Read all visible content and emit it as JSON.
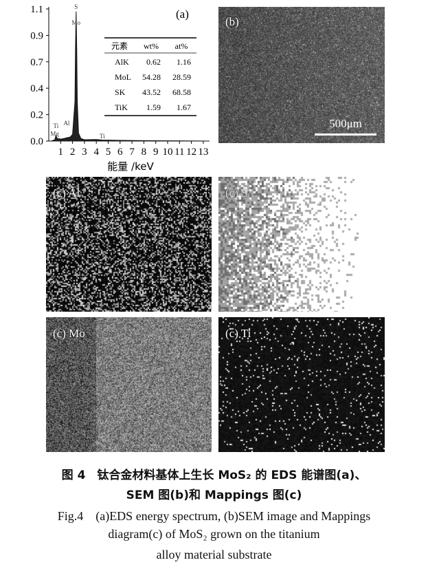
{
  "chart_data": {
    "type": "line",
    "panel_label": "(a)",
    "xlabel": "能量 /keV",
    "ylabel": "",
    "x_ticks": [
      "1",
      "2",
      "3",
      "4",
      "5",
      "6",
      "7",
      "8",
      "9",
      "10",
      "11",
      "12",
      "13"
    ],
    "y_ticks": [
      "0.0",
      "0.2",
      "0.4",
      "0.7",
      "0.9",
      "1.1"
    ],
    "xlim": [
      0,
      13.5
    ],
    "series": [
      {
        "x": [
          0.2,
          0.5,
          0.6,
          0.7,
          1.0,
          1.3,
          1.5,
          1.8,
          2.0,
          2.2,
          2.25,
          2.3,
          2.35,
          2.4,
          2.5,
          2.7,
          3.0,
          4.0,
          4.5,
          6,
          8,
          10,
          13.5
        ],
        "y": [
          0.0,
          0.01,
          0.04,
          0.02,
          0.015,
          0.02,
          0.025,
          0.03,
          0.05,
          0.3,
          0.8,
          1.08,
          0.8,
          0.3,
          0.06,
          0.02,
          0.01,
          0.012,
          0.008,
          0.005,
          0.003,
          0.002,
          0.0
        ]
      }
    ],
    "peak_labels": [
      {
        "text": "S",
        "x": 2.3,
        "y": 1.12
      },
      {
        "text": "Mo",
        "x": 2.3,
        "y": 0.98
      },
      {
        "text": "Ti",
        "x": 0.6,
        "y": 0.1
      },
      {
        "text": "Mg",
        "x": 0.5,
        "y": 0.04
      },
      {
        "text": "Al",
        "x": 1.5,
        "y": 0.12
      },
      {
        "text": "Ti",
        "x": 4.5,
        "y": 0.02
      }
    ],
    "table": {
      "headers": [
        "元素",
        "wt%",
        "at%"
      ],
      "rows": [
        [
          "AlK",
          "0.62",
          "1.16"
        ],
        [
          "MoL",
          "54.28",
          "28.59"
        ],
        [
          "SK",
          "43.52",
          "68.58"
        ],
        [
          "TiK",
          "1.59",
          "1.67"
        ]
      ]
    }
  },
  "panels": {
    "b": {
      "label": "(b)",
      "scale": "500μm"
    },
    "al": {
      "label": "(c) Al"
    },
    "s": {
      "label": "(c) S"
    },
    "mo": {
      "label": "(c) Mo"
    },
    "ti": {
      "label": "(c) Ti"
    }
  },
  "caption": {
    "zh_line1": "图 4　钛合金材料基体上生长 MoS₂ 的 EDS 能谱图(a)、",
    "zh_line2": "SEM 图(b)和 Mappings 图(c)",
    "en_line1": "Fig.4　(a)EDS energy spectrum, (b)SEM image and Mappings",
    "en_line2": "diagram(c) of MoS₂ grown on the titanium",
    "en_line3": "alloy material substrate"
  }
}
